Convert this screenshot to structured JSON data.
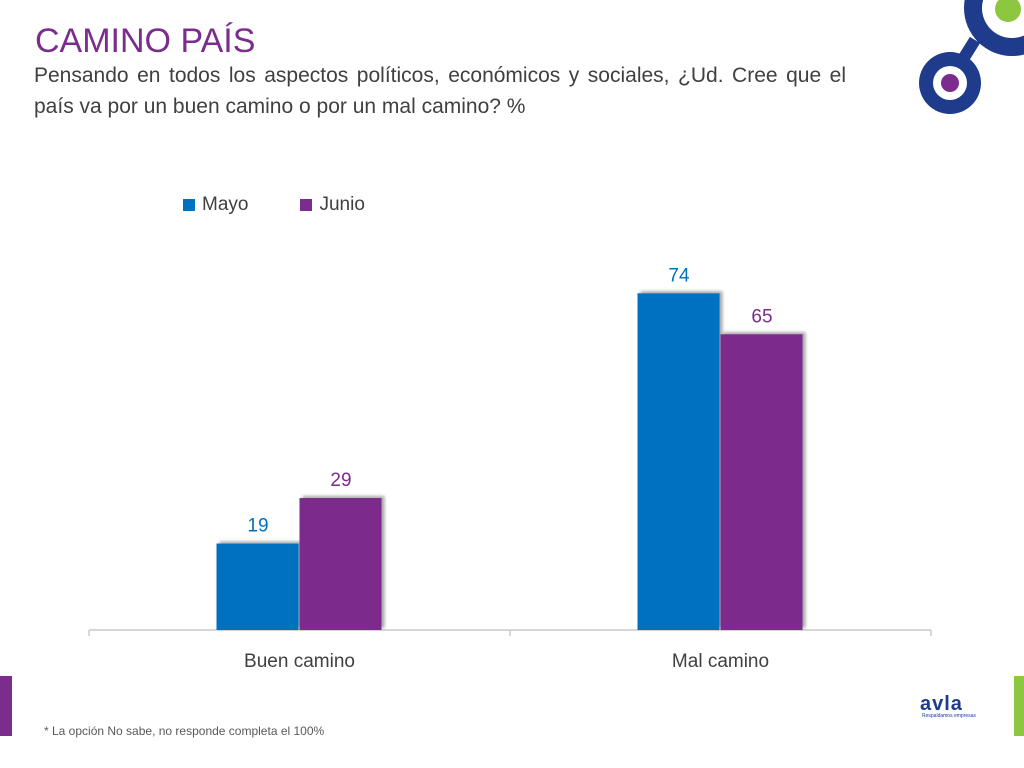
{
  "header": {
    "title": "CAMINO PAÍS",
    "question": "Pensando en todos los aspectos políticos, económicos y sociales, ¿Ud. Cree que el país va por un buen camino o por un mal camino? %"
  },
  "chart_data": {
    "type": "bar",
    "categories": [
      "Buen camino",
      "Mal camino"
    ],
    "series": [
      {
        "name": "Mayo",
        "values": [
          19,
          74
        ],
        "color": "#0070c0"
      },
      {
        "name": "Junio",
        "values": [
          29,
          65
        ],
        "color": "#7b2c8c"
      }
    ],
    "title": "",
    "xlabel": "",
    "ylabel": "",
    "ylim": [
      0,
      80
    ],
    "grid": false,
    "legend_position": "top-left"
  },
  "footnote": "* La opción No sabe, no responde completa el 100%",
  "logo": {
    "name": "avla",
    "tagline": "Respaldamos empresas"
  },
  "colors": {
    "title": "#7b2d8e",
    "accent_purple": "#7b2c8c",
    "accent_blue": "#0070c0",
    "accent_green": "#8dc63f",
    "deco_navy": "#1f3b8c"
  }
}
